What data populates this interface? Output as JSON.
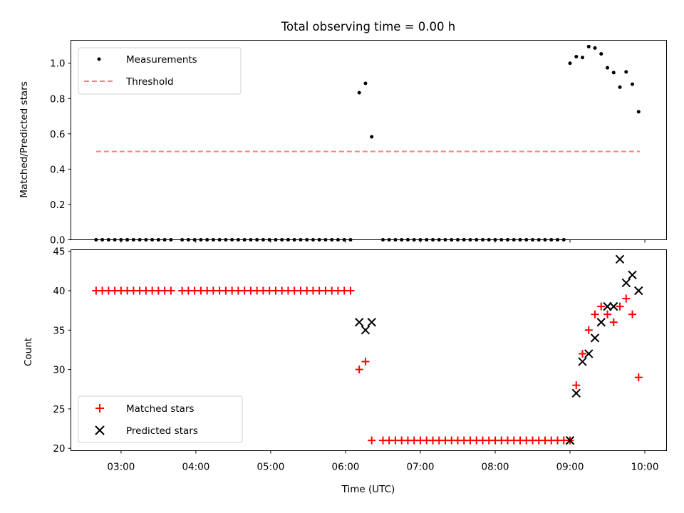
{
  "chart_data": [
    {
      "type": "scatter",
      "title": "Total observing time = 0.00 h",
      "xlabel": "",
      "ylabel": "Matched/Predicted stars",
      "ylim": [
        0,
        1.13
      ],
      "yticks": [
        "0.0",
        "0.2",
        "0.4",
        "0.6",
        "0.8",
        "1.0"
      ],
      "xlim_hours": [
        2.33,
        10.29
      ],
      "legend": {
        "position": "top-left",
        "entries": [
          "Measurements",
          "Threshold"
        ]
      },
      "colors": {
        "measurements": "#000000",
        "threshold": "#ff7f7f"
      },
      "threshold": {
        "value": 0.5,
        "x_start": "02:40",
        "x_end": "09:56"
      },
      "series": [
        {
          "name": "Measurements",
          "x": [
            "02:40",
            "02:45",
            "02:50",
            "02:55",
            "03:00",
            "03:05",
            "03:10",
            "03:15",
            "03:20",
            "03:25",
            "03:30",
            "03:35",
            "03:40",
            "03:49",
            "03:54",
            "03:59",
            "04:04",
            "04:09",
            "04:14",
            "04:19",
            "04:24",
            "04:29",
            "04:34",
            "04:39",
            "04:44",
            "04:49",
            "04:54",
            "04:59",
            "05:04",
            "05:09",
            "05:14",
            "05:19",
            "05:24",
            "05:29",
            "05:34",
            "05:39",
            "05:44",
            "05:49",
            "05:54",
            "05:59",
            "06:04",
            "06:11",
            "06:16",
            "06:21",
            "06:30",
            "06:35",
            "06:40",
            "06:45",
            "06:50",
            "06:55",
            "07:00",
            "07:05",
            "07:10",
            "07:15",
            "07:20",
            "07:25",
            "07:30",
            "07:35",
            "07:40",
            "07:45",
            "07:50",
            "07:55",
            "08:00",
            "08:05",
            "08:10",
            "08:15",
            "08:20",
            "08:25",
            "08:30",
            "08:35",
            "08:40",
            "08:45",
            "08:50",
            "08:55",
            "09:00",
            "09:05",
            "09:10",
            "09:15",
            "09:20",
            "09:25",
            "09:30",
            "09:35",
            "09:40",
            "09:45",
            "09:50",
            "09:55"
          ],
          "y": [
            0,
            0,
            0,
            0,
            0,
            0,
            0,
            0,
            0,
            0,
            0,
            0,
            0,
            0,
            0,
            0,
            0,
            0,
            0,
            0,
            0,
            0,
            0,
            0,
            0,
            0,
            0,
            0,
            0,
            0,
            0,
            0,
            0,
            0,
            0,
            0,
            0,
            0,
            0,
            0,
            0,
            0.833,
            0.886,
            0.583,
            0,
            0,
            0,
            0,
            0,
            0,
            0,
            0,
            0,
            0,
            0,
            0,
            0,
            0,
            0,
            0,
            0,
            0,
            0,
            0,
            0,
            0,
            0,
            0,
            0,
            0,
            0,
            0,
            0,
            0,
            1.0,
            1.037,
            1.032,
            1.094,
            1.086,
            1.053,
            0.974,
            0.947,
            0.864,
            0.951,
            0.881,
            0.725
          ]
        }
      ]
    },
    {
      "type": "scatter",
      "title": "",
      "xlabel": "Time (UTC)",
      "ylabel": "Count",
      "ylim": [
        19.7,
        45.2
      ],
      "yticks": [
        "20",
        "25",
        "30",
        "35",
        "40",
        "45"
      ],
      "xticks": [
        "03:00",
        "04:00",
        "05:00",
        "06:00",
        "07:00",
        "08:00",
        "09:00",
        "10:00"
      ],
      "xlim_hours": [
        2.33,
        10.29
      ],
      "legend": {
        "position": "bottom-left",
        "entries": [
          "Matched stars",
          "Predicted stars"
        ]
      },
      "colors": {
        "matched": "#ff0000",
        "predicted": "#000000"
      },
      "series": [
        {
          "name": "Matched stars",
          "marker": "plus",
          "x": [
            "02:40",
            "02:45",
            "02:50",
            "02:55",
            "03:00",
            "03:05",
            "03:10",
            "03:15",
            "03:20",
            "03:25",
            "03:30",
            "03:35",
            "03:40",
            "03:49",
            "03:54",
            "03:59",
            "04:04",
            "04:09",
            "04:14",
            "04:19",
            "04:24",
            "04:29",
            "04:34",
            "04:39",
            "04:44",
            "04:49",
            "04:54",
            "04:59",
            "05:04",
            "05:09",
            "05:14",
            "05:19",
            "05:24",
            "05:29",
            "05:34",
            "05:39",
            "05:44",
            "05:49",
            "05:54",
            "05:59",
            "06:04",
            "06:11",
            "06:16",
            "06:21",
            "06:30",
            "06:35",
            "06:40",
            "06:45",
            "06:50",
            "06:55",
            "07:00",
            "07:05",
            "07:10",
            "07:15",
            "07:20",
            "07:25",
            "07:30",
            "07:35",
            "07:40",
            "07:45",
            "07:50",
            "07:55",
            "08:00",
            "08:05",
            "08:10",
            "08:15",
            "08:20",
            "08:25",
            "08:30",
            "08:35",
            "08:40",
            "08:45",
            "08:50",
            "08:55",
            "09:00",
            "09:05",
            "09:10",
            "09:15",
            "09:20",
            "09:25",
            "09:30",
            "09:35",
            "09:40",
            "09:45",
            "09:50",
            "09:55"
          ],
          "y": [
            40,
            40,
            40,
            40,
            40,
            40,
            40,
            40,
            40,
            40,
            40,
            40,
            40,
            40,
            40,
            40,
            40,
            40,
            40,
            40,
            40,
            40,
            40,
            40,
            40,
            40,
            40,
            40,
            40,
            40,
            40,
            40,
            40,
            40,
            40,
            40,
            40,
            40,
            40,
            40,
            40,
            30,
            31,
            21,
            21,
            21,
            21,
            21,
            21,
            21,
            21,
            21,
            21,
            21,
            21,
            21,
            21,
            21,
            21,
            21,
            21,
            21,
            21,
            21,
            21,
            21,
            21,
            21,
            21,
            21,
            21,
            21,
            21,
            21,
            21,
            28,
            32,
            35,
            37,
            38,
            37,
            36,
            38,
            39,
            37,
            29
          ]
        },
        {
          "name": "Predicted stars",
          "marker": "x",
          "x": [
            "06:11",
            "06:16",
            "06:21",
            "09:00",
            "09:05",
            "09:10",
            "09:15",
            "09:20",
            "09:25",
            "09:30",
            "09:35",
            "09:40",
            "09:45",
            "09:50",
            "09:55"
          ],
          "y": [
            36,
            35,
            36,
            21,
            27,
            31,
            32,
            34,
            36,
            38,
            38,
            44,
            41,
            42,
            40
          ]
        }
      ]
    }
  ]
}
